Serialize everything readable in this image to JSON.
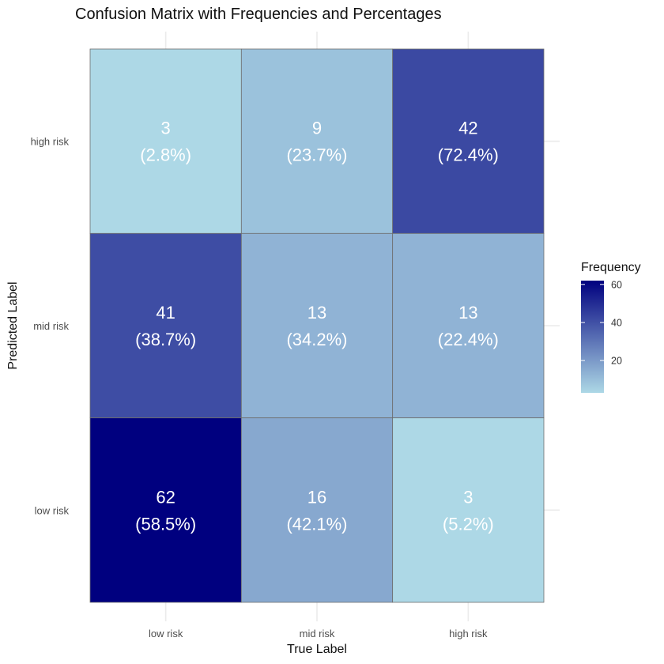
{
  "chart_data": {
    "type": "heatmap",
    "title": "Confusion Matrix with Frequencies and Percentages",
    "xlabel": "True Label",
    "ylabel": "Predicted Label",
    "x_categories": [
      "low risk",
      "mid risk",
      "high risk"
    ],
    "y_categories": [
      "low risk",
      "mid risk",
      "high risk"
    ],
    "cells": [
      {
        "x": "low risk",
        "y": "high risk",
        "value": 3,
        "percent": "(2.8%)"
      },
      {
        "x": "mid risk",
        "y": "high risk",
        "value": 9,
        "percent": "(23.7%)"
      },
      {
        "x": "high risk",
        "y": "high risk",
        "value": 42,
        "percent": "(72.4%)"
      },
      {
        "x": "low risk",
        "y": "mid risk",
        "value": 41,
        "percent": "(38.7%)"
      },
      {
        "x": "mid risk",
        "y": "mid risk",
        "value": 13,
        "percent": "(34.2%)"
      },
      {
        "x": "high risk",
        "y": "mid risk",
        "value": 13,
        "percent": "(22.4%)"
      },
      {
        "x": "low risk",
        "y": "low risk",
        "value": 62,
        "percent": "(58.5%)"
      },
      {
        "x": "mid risk",
        "y": "low risk",
        "value": 16,
        "percent": "(42.1%)"
      },
      {
        "x": "high risk",
        "y": "low risk",
        "value": 3,
        "percent": "(5.2%)"
      }
    ],
    "legend": {
      "title": "Frequency",
      "ticks": [
        20,
        40,
        60
      ],
      "range": [
        3,
        62
      ],
      "low_color": "#add8e6",
      "high_color": "#00007f",
      "placement": "right"
    },
    "grid": true
  }
}
